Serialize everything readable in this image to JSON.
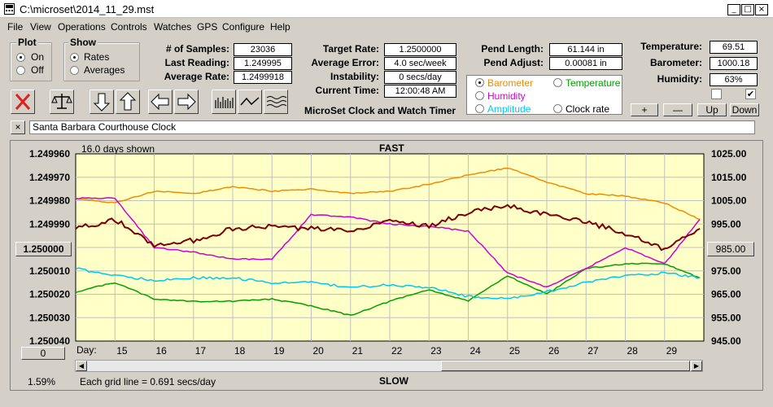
{
  "window": {
    "title": "C:\\microset\\2014_11_29.mst"
  },
  "menu": [
    "File",
    "View",
    "Operations",
    "Controls",
    "Watches",
    "GPS",
    "Configure",
    "Help"
  ],
  "plot": {
    "title": "Plot",
    "options": [
      "On",
      "Off"
    ],
    "selected": "On"
  },
  "show": {
    "title": "Show",
    "options": [
      "Rates",
      "Averages"
    ],
    "selected": "Rates"
  },
  "stats": {
    "samples_label": "# of Samples:",
    "samples": "23036",
    "last_reading_label": "Last Reading:",
    "last_reading": "1.249995",
    "average_rate_label": "Average Rate:",
    "average_rate": "1.2499918",
    "target_rate_label": "Target Rate:",
    "target_rate": "1.2500000",
    "average_error_label": "Average Error:",
    "average_error": "4.0 sec/week",
    "instability_label": "Instability:",
    "instability": "0 secs/day",
    "current_time_label": "Current Time:",
    "current_time": "12:00:48 AM",
    "pend_length_label": "Pend Length:",
    "pend_length": "61.144 in",
    "pend_adjust_label": "Pend Adjust:",
    "pend_adjust": "0.00081 in",
    "temperature_label": "Temperature:",
    "temperature": "69.51",
    "barometer_label": "Barometer:",
    "barometer": "1000.18",
    "humidity_label": "Humidity:",
    "humidity": "63%"
  },
  "app_name": "MicroSet Clock and Watch Timer",
  "channels": [
    {
      "name": "Barometer",
      "color": "#f08c00",
      "selected": true
    },
    {
      "name": "Temperature",
      "color": "#00a000",
      "selected": false
    },
    {
      "name": "Humidity",
      "color": "#d000d0",
      "selected": false
    },
    {
      "name": "Clock rate",
      "color": "#000000",
      "selected": false
    },
    {
      "name": "Amplitude",
      "color": "#00c8f0",
      "selected": false
    }
  ],
  "small_buttons": {
    "plus": "+",
    "minus": "—",
    "up": "Up",
    "down": "Down"
  },
  "checks": {
    "left": false,
    "right": true
  },
  "clock_name": "Santa Barbara Courthouse Clock",
  "chart_header": {
    "days_shown": "16.0 days shown",
    "fast": "FAST",
    "slow": "SLOW",
    "grid_note": "Each grid line = 0.691 secs/day",
    "percent": "1.59%",
    "center_left": "1.250000",
    "center_right": "985.00",
    "zero_btn": "0",
    "day_label": "Day:"
  },
  "chart_data": {
    "type": "line",
    "x_ticks": [
      "15",
      "16",
      "17",
      "18",
      "19",
      "20",
      "21",
      "22",
      "23",
      "24",
      "25",
      "26",
      "27",
      "28",
      "29"
    ],
    "y_left_ticks": [
      "1.249960",
      "1.249970",
      "1.249980",
      "1.249990",
      "1.250000",
      "1.250010",
      "1.250020",
      "1.250030",
      "1.250040"
    ],
    "y_right_ticks": [
      "1025.00",
      "1015.00",
      "1005.00",
      "995.00",
      "985.00",
      "975.00",
      "965.00",
      "955.00",
      "945.00"
    ],
    "y_left_range": [
      1.24996,
      1.25004
    ],
    "y_right_range": [
      945,
      1025
    ],
    "x_range": [
      14.0,
      30.0
    ],
    "series": [
      {
        "name": "Barometer",
        "color": "#f08c00",
        "axis": "right",
        "x": [
          14.0,
          15,
          16,
          17,
          18,
          19,
          20,
          21,
          22,
          23,
          24,
          25,
          26,
          27,
          28,
          29,
          29.9
        ],
        "y": [
          1006,
          1004,
          1009,
          1008,
          1011,
          1009,
          1010,
          1008,
          1009,
          1012,
          1016,
          1019,
          1013,
          1008,
          1007,
          1004,
          997
        ]
      },
      {
        "name": "Temperature",
        "color": "#00a000",
        "axis": "right",
        "x": [
          14.0,
          15,
          16,
          17,
          18,
          19,
          20,
          21,
          22,
          23,
          24,
          25,
          26,
          27,
          28,
          29,
          29.9
        ],
        "y": [
          966,
          970,
          963,
          962,
          962,
          963,
          960,
          956,
          962,
          967,
          962,
          973,
          965,
          976,
          978,
          978,
          972
        ]
      },
      {
        "name": "Humidity",
        "color": "#d000d0",
        "axis": "right",
        "x": [
          14.0,
          15,
          16,
          17,
          18,
          19,
          20,
          21,
          22,
          23,
          24,
          25,
          26,
          27,
          28,
          29,
          29.9
        ],
        "y": [
          1006,
          1006,
          985,
          983,
          980,
          980,
          999,
          998,
          995,
          994,
          992,
          974,
          968,
          976,
          985,
          978,
          997
        ]
      },
      {
        "name": "Amplitude",
        "color": "#00c8f0",
        "axis": "right",
        "x": [
          14.0,
          15,
          16,
          17,
          18,
          19,
          20,
          21,
          22,
          23,
          24,
          25,
          26,
          27,
          28,
          29,
          29.9
        ],
        "y": [
          976,
          973,
          971,
          972,
          972,
          970,
          970,
          968,
          969,
          968,
          964,
          963,
          966,
          970,
          973,
          974,
          972
        ]
      },
      {
        "name": "Clock rate",
        "color": "#7a0000",
        "axis": "left",
        "x": [
          14.0,
          15,
          16,
          17,
          18,
          19,
          20,
          21,
          22,
          23,
          24,
          25,
          26,
          27,
          28,
          29,
          29.9
        ],
        "y": [
          1.249992,
          1.249988,
          1.249999,
          1.249997,
          1.249992,
          1.249991,
          1.249992,
          1.249993,
          1.249988,
          1.249991,
          1.249985,
          1.249982,
          1.249986,
          1.249989,
          1.249994,
          1.250001,
          1.249992
        ]
      }
    ]
  }
}
